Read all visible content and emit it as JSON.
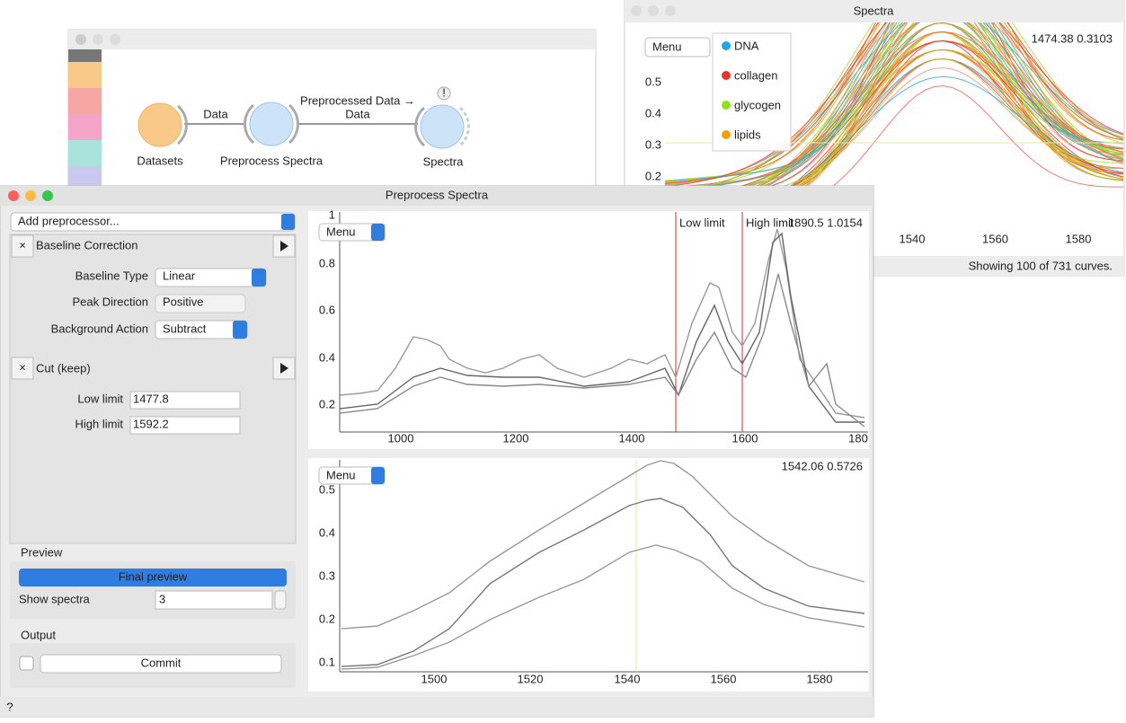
{
  "workflow_window": {
    "nodes": [
      {
        "label": "Datasets"
      },
      {
        "label": "Preprocess Spectra"
      },
      {
        "label": "Spectra"
      }
    ],
    "links": [
      {
        "label": "Data"
      },
      {
        "label": "Preprocessed Data →"
      },
      {
        "label": "Data"
      }
    ],
    "warning": "!"
  },
  "spectra_window": {
    "title": "Spectra",
    "menu": "Menu",
    "legend": [
      "DNA",
      "collagen",
      "glycogen",
      "lipids"
    ],
    "coords": "1474.38 0.3103",
    "yticks": [
      "0.5",
      "0.4",
      "0.3",
      "0.2"
    ],
    "xticks": [
      "1540",
      "1560",
      "1580"
    ],
    "status": "Showing 100 of 731 curves."
  },
  "preprocess_window": {
    "title": "Preprocess Spectra",
    "add_preprocessor": "Add preprocessor...",
    "baseline": {
      "title": "Baseline Correction",
      "fields": [
        {
          "label": "Baseline Type",
          "value": "Linear"
        },
        {
          "label": "Peak Direction",
          "value": "Positive"
        },
        {
          "label": "Background Action",
          "value": "Subtract"
        }
      ]
    },
    "cut": {
      "title": "Cut (keep)",
      "fields": [
        {
          "label": "Low limit",
          "value": "1477.8"
        },
        {
          "label": "High limit",
          "value": "1592.2"
        }
      ]
    },
    "preview": {
      "title": "Preview",
      "button": "Final preview",
      "show_label": "Show spectra",
      "show_value": "3"
    },
    "output": {
      "title": "Output",
      "button": "Commit"
    },
    "help": "?",
    "top_plot": {
      "menu": "Menu",
      "low_label": "Low limit",
      "high_label": "High limit",
      "coords": "1890.5 1.0154",
      "yticks": [
        "1",
        "0.8",
        "0.6",
        "0.4",
        "0.2"
      ],
      "xticks": [
        "1000",
        "1200",
        "1400",
        "1600",
        "180"
      ]
    },
    "bottom_plot": {
      "menu": "Menu",
      "coords": "1542.06 0.5726",
      "yticks": [
        "0.5",
        "0.4",
        "0.3",
        "0.2",
        "0.1"
      ],
      "xticks": [
        "1500",
        "1520",
        "1540",
        "1560",
        "1580"
      ]
    }
  }
}
